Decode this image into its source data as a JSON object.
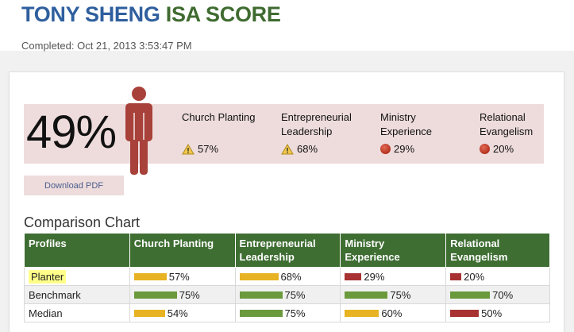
{
  "header": {
    "name": "TONY SHENG",
    "score_word": "ISA SCORE",
    "completed": "Completed: Oct 21, 2013 3:53:47 PM"
  },
  "summary": {
    "overall_score": "49%",
    "categories": [
      {
        "name": "Church Planting",
        "value": "57%",
        "icon": "warning-icon"
      },
      {
        "name": "Entrepreneurial Leadership",
        "value": "68%",
        "icon": "warning-icon"
      },
      {
        "name": "Ministry Experience",
        "value": "29%",
        "icon": "red-dot-icon"
      },
      {
        "name": "Relational Evangelism",
        "value": "20%",
        "icon": "red-dot-icon"
      }
    ],
    "download_label": "Download PDF"
  },
  "comparison": {
    "title": "Comparison Chart",
    "headers": [
      "Profiles",
      "Church Planting",
      "Entrepreneurial Leadership",
      "Ministry Experience",
      "Relational Evangelism"
    ],
    "rows": [
      {
        "profile": "Planter",
        "highlighted": true,
        "cells": [
          {
            "label": "57%",
            "value": 57,
            "color": "#e8b322"
          },
          {
            "label": "68%",
            "value": 68,
            "color": "#e8b322"
          },
          {
            "label": "29%",
            "value": 29,
            "color": "#a83232"
          },
          {
            "label": "20%",
            "value": 20,
            "color": "#a83232"
          }
        ]
      },
      {
        "profile": "Benchmark",
        "highlighted": false,
        "cells": [
          {
            "label": "75%",
            "value": 75,
            "color": "#6a9a3c"
          },
          {
            "label": "75%",
            "value": 75,
            "color": "#6a9a3c"
          },
          {
            "label": "75%",
            "value": 75,
            "color": "#6a9a3c"
          },
          {
            "label": "70%",
            "value": 70,
            "color": "#6a9a3c"
          }
        ]
      },
      {
        "profile": "Median",
        "highlighted": false,
        "cells": [
          {
            "label": "54%",
            "value": 54,
            "color": "#e8b322"
          },
          {
            "label": "75%",
            "value": 75,
            "color": "#6a9a3c"
          },
          {
            "label": "60%",
            "value": 60,
            "color": "#e8b322"
          },
          {
            "label": "50%",
            "value": 50,
            "color": "#a83232"
          }
        ]
      }
    ]
  },
  "colors": {
    "title_blue": "#2f5f9e",
    "title_green": "#3f6b30",
    "band": "#eedcdc",
    "person": "#a8413a",
    "header_green": "#3f6e33"
  }
}
